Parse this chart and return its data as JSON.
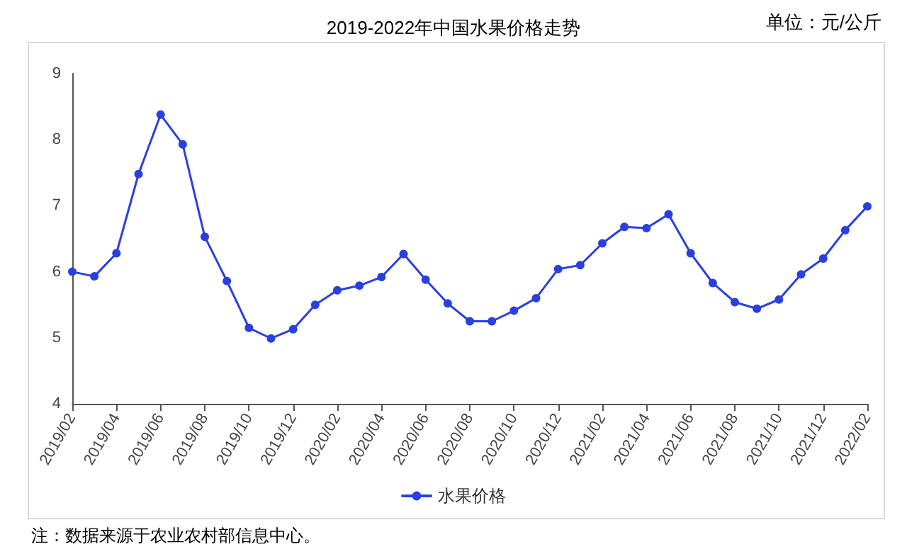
{
  "chart_data": {
    "type": "line",
    "title": "2019-2022年中国水果价格走势",
    "annotations": [
      "单位：元/公斤",
      "注：数据来源于农业农村部信息中心。"
    ],
    "categories": [
      "2019/02",
      null,
      "2019/04",
      null,
      "2019/06",
      null,
      "2019/08",
      null,
      "2019/10",
      null,
      "2019/12",
      null,
      "2020/02",
      null,
      "2020/04",
      null,
      "2020/06",
      null,
      "2020/08",
      null,
      "2020/10",
      null,
      "2020/12",
      null,
      "2021/02",
      null,
      "2021/04",
      null,
      "2021/06",
      null,
      "2021/08",
      null,
      "2021/10",
      null,
      "2021/12",
      null,
      "2022/02"
    ],
    "series": [
      {
        "name": "水果价格",
        "color": "#2a3fe0",
        "values": [
          6.0,
          5.93,
          6.28,
          7.48,
          8.38,
          7.93,
          6.53,
          5.86,
          5.15,
          4.99,
          5.13,
          5.5,
          5.72,
          5.79,
          5.92,
          6.27,
          5.88,
          5.52,
          5.25,
          5.25,
          5.41,
          5.6,
          6.04,
          6.1,
          6.43,
          6.68,
          6.66,
          6.87,
          6.28,
          5.83,
          5.54,
          5.44,
          5.58,
          5.96,
          6.2,
          6.63,
          6.99
        ]
      }
    ],
    "ylim": [
      4,
      9
    ],
    "yticks": [
      4,
      5,
      6,
      7,
      8,
      9
    ],
    "grid": false,
    "legend": "bottom",
    "marker": "circle",
    "line_style": "solid"
  }
}
